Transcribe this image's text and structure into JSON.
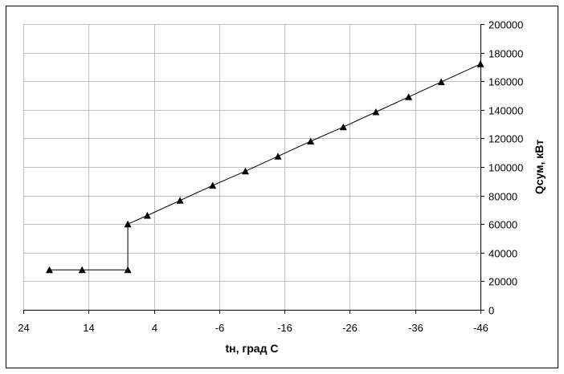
{
  "chart_data": {
    "type": "line",
    "title": "",
    "xlabel": "tн, град С",
    "ylabel": "Qсум, кВт",
    "xlim": [
      24,
      -46
    ],
    "ylim": [
      0,
      200000
    ],
    "x_ticks": [
      24,
      14,
      4,
      -6,
      -16,
      -26,
      -36,
      -46
    ],
    "y_ticks": [
      0,
      20000,
      40000,
      60000,
      80000,
      100000,
      120000,
      140000,
      160000,
      180000,
      200000
    ],
    "x_tick_labels": [
      "24",
      "14",
      "4",
      "-6",
      "-16",
      "-26",
      "-36",
      "-46"
    ],
    "y_tick_labels": [
      "0",
      "20000",
      "40000",
      "60000",
      "80000",
      "100000",
      "120000",
      "140000",
      "160000",
      "180000",
      "200000"
    ],
    "grid": true,
    "y_axis_side": "right",
    "series": [
      {
        "marker": "triangle",
        "color": "#000000",
        "x": [
          20,
          15,
          8,
          8,
          5,
          0,
          -5,
          -10,
          -15,
          -20,
          -25,
          -30,
          -35,
          -40,
          -46
        ],
        "y": [
          28000,
          28000,
          28000,
          60000,
          66000,
          76500,
          87000,
          97000,
          107500,
          118000,
          128000,
          138500,
          149000,
          159500,
          172000
        ]
      }
    ]
  }
}
